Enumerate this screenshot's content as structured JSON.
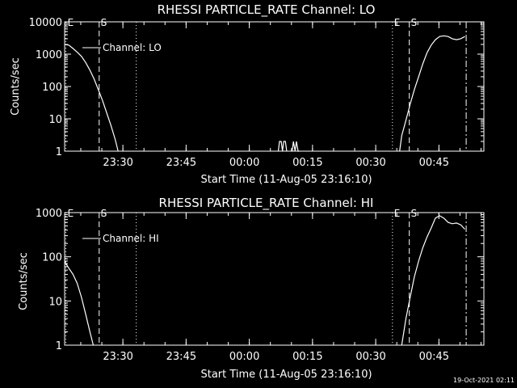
{
  "footer": {
    "timestamp": "19-Oct-2021 02:11"
  },
  "chart_data": [
    {
      "type": "line",
      "title": "RHESSI PARTICLE_RATE Channel: LO",
      "xlabel": "Start Time (11-Aug-05 23:16:10)",
      "ylabel": "Counts/sec",
      "yscale": "log",
      "ylim": [
        1,
        10000
      ],
      "xlim_minutes": [
        0,
        99.5
      ],
      "ytick_labels": [
        "1",
        "10",
        "100",
        "1000",
        "10000"
      ],
      "xtick_labels": [
        "23:30",
        "23:45",
        "00:00",
        "00:15",
        "00:30",
        "00:45"
      ],
      "xtick_minutes": [
        13.83,
        28.83,
        43.83,
        58.83,
        73.83,
        88.83
      ],
      "legend": {
        "label": "Channel: LO",
        "position": "top-left"
      },
      "markers": [
        {
          "label": "E",
          "minute": 0.3,
          "style": "dotted"
        },
        {
          "label": "S",
          "minute": 8.2,
          "style": "dashed"
        },
        {
          "label": "",
          "minute": 17.0,
          "style": "dotted"
        },
        {
          "label": "E",
          "minute": 77.8,
          "style": "dotted"
        },
        {
          "label": "S",
          "minute": 81.8,
          "style": "dashed"
        },
        {
          "label": "",
          "minute": 95.3,
          "style": "dashdot"
        }
      ],
      "series": [
        {
          "name": "Channel: LO",
          "segments": [
            {
              "x": [
                0,
                1,
                2,
                3,
                4,
                5,
                6,
                7,
                8,
                9,
                10,
                11,
                12,
                12.7
              ],
              "y": [
                2000,
                1900,
                1500,
                1150,
                850,
                550,
                320,
                170,
                80,
                37,
                15,
                6.2,
                2.3,
                1
              ]
            },
            {
              "x": [
                50.7,
                51.0,
                51.4,
                51.7,
                52.0,
                52.4,
                52.7
              ],
              "y": [
                1,
                2,
                2,
                1,
                2,
                2,
                1
              ]
            },
            {
              "x": [
                54.0,
                54.3,
                54.7,
                55.0,
                55.4,
                55.7
              ],
              "y": [
                1,
                2,
                1,
                2,
                1,
                1
              ]
            },
            {
              "x": [
                79.5,
                80,
                81,
                82,
                83,
                84,
                85,
                86,
                87,
                88,
                89,
                90,
                91,
                92,
                93,
                94,
                95
              ],
              "y": [
                1,
                3,
                9,
                28,
                80,
                200,
                500,
                1100,
                1900,
                2800,
                3500,
                3700,
                3500,
                3000,
                2800,
                3000,
                3500
              ]
            }
          ]
        }
      ]
    },
    {
      "type": "line",
      "title": "RHESSI PARTICLE_RATE Channel: HI",
      "xlabel": "Start Time (11-Aug-05 23:16:10)",
      "ylabel": "Counts/sec",
      "yscale": "log",
      "ylim": [
        1,
        1000
      ],
      "xlim_minutes": [
        0,
        99.5
      ],
      "ytick_labels": [
        "1",
        "10",
        "100",
        "1000"
      ],
      "xtick_labels": [
        "23:30",
        "23:45",
        "00:00",
        "00:15",
        "00:30",
        "00:45"
      ],
      "xtick_minutes": [
        13.83,
        28.83,
        43.83,
        58.83,
        73.83,
        88.83
      ],
      "legend": {
        "label": "Channel: HI",
        "position": "top-left"
      },
      "markers": [
        {
          "label": "E",
          "minute": 0.3,
          "style": "dotted"
        },
        {
          "label": "S",
          "minute": 8.2,
          "style": "dashed"
        },
        {
          "label": "",
          "minute": 17.0,
          "style": "dotted"
        },
        {
          "label": "E",
          "minute": 77.8,
          "style": "dotted"
        },
        {
          "label": "S",
          "minute": 81.8,
          "style": "dashed"
        },
        {
          "label": "",
          "minute": 95.3,
          "style": "dashdot"
        }
      ],
      "series": [
        {
          "name": "Channel: HI",
          "segments": [
            {
              "x": [
                0,
                1,
                2,
                3,
                4,
                5,
                6,
                6.8
              ],
              "y": [
                80,
                55,
                40,
                25,
                12,
                5,
                2,
                1
              ]
            },
            {
              "x": [
                80,
                81,
                82,
                83,
                84,
                85,
                86,
                87,
                88,
                89,
                90,
                91,
                92,
                93,
                94,
                95
              ],
              "y": [
                1,
                4,
                12,
                35,
                80,
                160,
                280,
                450,
                750,
                850,
                750,
                600,
                560,
                580,
                530,
                420
              ]
            }
          ]
        }
      ]
    }
  ]
}
